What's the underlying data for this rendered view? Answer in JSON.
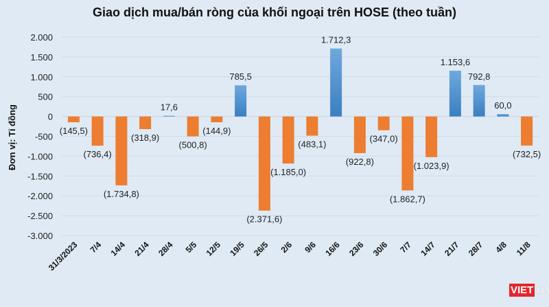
{
  "chart_data": {
    "type": "bar",
    "title": "Giao dịch mua/bán ròng của khối ngoại trên HOSE (theo tuần)",
    "ylabel": "Đơn vị: Tỉ đồng",
    "xlabel": "",
    "ylim": [
      -3000,
      2000
    ],
    "yticks": [
      2000,
      1500,
      1000,
      500,
      0,
      -500,
      -1000,
      -1500,
      -2000,
      -2500,
      -3000
    ],
    "ytick_labels": [
      "2.000",
      "1.500",
      "1.000",
      "500",
      "0",
      "-500",
      "-1.000",
      "-1.500",
      "-2.000",
      "-2.500",
      "-3.000"
    ],
    "grid": true,
    "categories": [
      "31/3/2023",
      "7/4",
      "14/4",
      "21/4",
      "28/4",
      "5/5",
      "12/5",
      "19/5",
      "26/5",
      "2/6",
      "9/6",
      "16/6",
      "23/6",
      "30/6",
      "7/7",
      "14/7",
      "21/7",
      "28/7",
      "4/8",
      "11/8"
    ],
    "values": [
      -145.5,
      -736.4,
      -1734.8,
      -318.9,
      17.6,
      -500.8,
      -144.9,
      785.5,
      -2371.6,
      -1185.0,
      -483.1,
      1712.3,
      -922.8,
      -347.0,
      -1862.7,
      -1023.9,
      1153.6,
      792.8,
      60.0,
      -732.5
    ],
    "data_labels": [
      "(145,5)",
      "(736,4)",
      "(1.734,8)",
      "(318,9)",
      "17,6",
      "(500,8)",
      "(144,9)",
      "785,5",
      "(2.371,6)",
      "(1.185,0)",
      "(483,1)",
      "1.712,3",
      "(922,8)",
      "(347,0)",
      "(1.862,7)",
      "(1.023,9)",
      "1.153,6",
      "792,8",
      "60,0",
      "(732,5)"
    ],
    "colors": {
      "positive": "#4a8fd4",
      "negative": "#ed7d31",
      "grid": "#cfdbe8"
    }
  },
  "watermark": {
    "text": "VIETTIMES"
  }
}
